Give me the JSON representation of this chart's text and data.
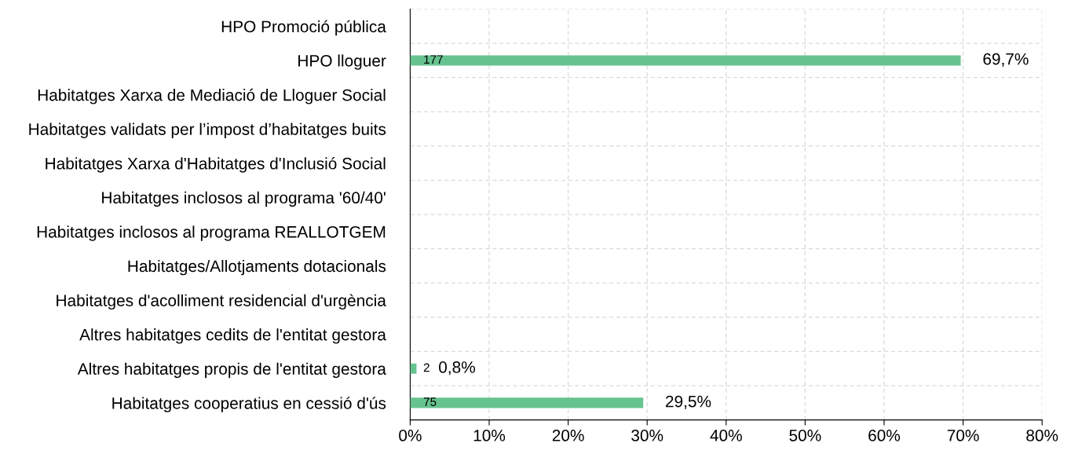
{
  "chart_data": {
    "type": "bar",
    "orientation": "horizontal",
    "categories": [
      "HPO Promoció pública",
      "HPO lloguer",
      "Habitatges Xarxa de Mediació de Lloguer Social",
      "Habitatges validats per l’impost d’habitatges buits",
      "Habitatges Xarxa d'Habitatges d'Inclusió Social",
      "Habitatges inclosos al programa '60/40'",
      "Habitatges inclosos al programa REALLOTGEM",
      "Habitatges/Allotjaments dotacionals",
      "Habitatges d'acolliment residencial d'urgència",
      "Altres habitatges cedits de l'entitat gestora",
      "Altres habitatges propis de l'entitat gestora",
      "Habitatges cooperatius en cessió d'ús"
    ],
    "values": [
      0,
      69.7,
      0,
      0,
      0,
      0,
      0,
      0,
      0,
      0,
      0.8,
      29.5
    ],
    "value_labels": [
      null,
      "69,7%",
      null,
      null,
      null,
      null,
      null,
      null,
      null,
      null,
      "0,8%",
      "29,5%"
    ],
    "color": "#66c38f",
    "annotations": [
      "177",
      "2",
      "75"
    ],
    "xlim": [
      0,
      80
    ],
    "xticks": [
      {
        "value": 0,
        "label": "0%"
      },
      {
        "value": 10,
        "label": "10%"
      },
      {
        "value": 20,
        "label": "20%"
      },
      {
        "value": 30,
        "label": "30%"
      },
      {
        "value": 40,
        "label": "40%"
      },
      {
        "value": 50,
        "label": "50%"
      },
      {
        "value": 60,
        "label": "60%"
      },
      {
        "value": 70,
        "label": "70%"
      },
      {
        "value": 80,
        "label": "80%"
      }
    ],
    "grid": true
  }
}
